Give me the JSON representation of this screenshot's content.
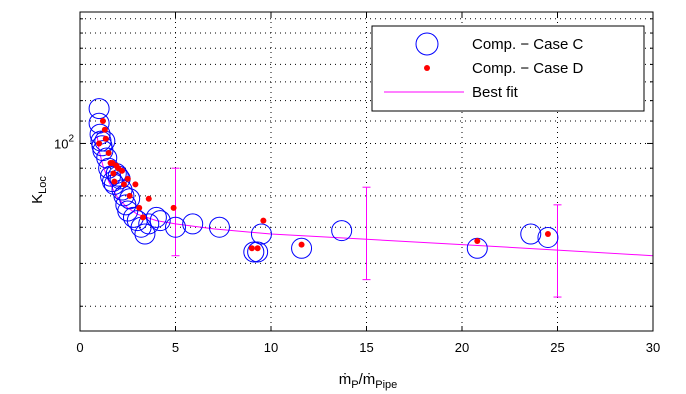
{
  "chart_data": {
    "type": "scatter",
    "title": "",
    "xlabel": {
      "main": "ṁ",
      "sub1": "P",
      "slash": "/ṁ",
      "sub2": "Pipe"
    },
    "ylabel": {
      "main": "K",
      "sub": "Loc"
    },
    "xlim": [
      0,
      30
    ],
    "ylim": [
      45,
      175
    ],
    "yscale": "log",
    "xticks": [
      0,
      5,
      10,
      15,
      20,
      25,
      30
    ],
    "xtick_labels": [
      "0",
      "5",
      "10",
      "15",
      "20",
      "25",
      "30"
    ],
    "ytick_label": {
      "base": "10",
      "exp": "2",
      "value": 100
    },
    "grid": true,
    "legend_position": "top-right",
    "series": [
      {
        "name": "Comp. − Case C",
        "marker": "open-circle",
        "color": "#0000ff",
        "x": [
          1.0,
          1.0,
          1.05,
          1.1,
          1.15,
          1.2,
          1.3,
          1.4,
          1.5,
          1.6,
          1.7,
          1.8,
          1.9,
          2.0,
          2.1,
          2.2,
          2.3,
          2.4,
          2.5,
          2.6,
          2.8,
          3.0,
          3.2,
          3.4,
          3.6,
          4.0,
          4.2,
          5.0,
          5.9,
          7.3,
          9.1,
          9.3,
          9.5,
          11.6,
          13.7,
          20.8,
          23.6,
          24.5
        ],
        "y": [
          116,
          109,
          104,
          101,
          99,
          97,
          101,
          94,
          90,
          87,
          85,
          84,
          88,
          87,
          86,
          82,
          80,
          77,
          75,
          79,
          73,
          72,
          70,
          68,
          71,
          73,
          72,
          70,
          71,
          70,
          63,
          63,
          68,
          64,
          69,
          64,
          68,
          67
        ]
      },
      {
        "name": "Comp. − Case D",
        "marker": "dot",
        "color": "#ff0000",
        "x": [
          1.0,
          1.2,
          1.3,
          1.35,
          1.5,
          1.6,
          1.7,
          1.75,
          1.8,
          1.9,
          2.0,
          2.2,
          2.3,
          2.5,
          2.6,
          2.9,
          3.1,
          3.3,
          3.6,
          4.9,
          9.0,
          9.3,
          9.6,
          11.6,
          20.8,
          24.5
        ],
        "y": [
          100,
          110,
          106,
          102,
          96,
          92,
          92,
          88,
          85,
          91,
          90,
          89,
          84,
          86,
          80,
          84,
          76,
          73,
          79,
          76,
          64,
          64,
          72,
          65,
          66,
          68
        ]
      },
      {
        "name": "Best fit",
        "marker": "line",
        "color": "#ff00ff",
        "x": [
          0.9,
          1.0,
          1.2,
          1.5,
          2.0,
          2.5,
          3.0,
          4.0,
          5.0,
          7.0,
          10.0,
          15.0,
          20.0,
          25.0,
          30.0
        ],
        "y": [
          103,
          97,
          91,
          85,
          79,
          76,
          74,
          72,
          71,
          69.5,
          68,
          66.5,
          65,
          63.5,
          62
        ]
      }
    ],
    "error_bars": {
      "color": "#ff00ff",
      "bars": [
        {
          "x": 5,
          "y": 71,
          "low": 62,
          "high": 90
        },
        {
          "x": 15,
          "y": 66.5,
          "low": 56,
          "high": 83
        },
        {
          "x": 25,
          "y": 63.5,
          "low": 52,
          "high": 77
        }
      ]
    }
  }
}
